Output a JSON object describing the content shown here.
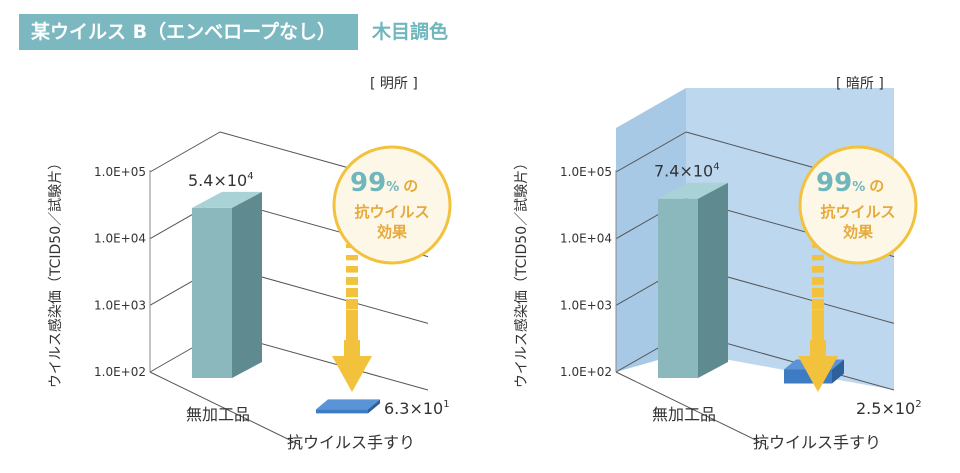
{
  "header": {
    "title": "某ウイルス B（エンベロープなし）",
    "subtitle": "木目調色"
  },
  "chart_data": [
    {
      "type": "bar",
      "log_scale": true,
      "condition": "[ 明所 ]",
      "ylabel": "ウイルス感染価（TCID50／試験片）",
      "yticks": [
        "1.0E+02",
        "1.0E+03",
        "1.0E+04",
        "1.0E+05"
      ],
      "ylim": [
        100,
        100000
      ],
      "categories": [
        "無加工品",
        "抗ウイルス手すり"
      ],
      "values": [
        54000,
        63
      ],
      "value_labels": [
        {
          "base": "5.4×10",
          "exp": "4"
        },
        {
          "base": "6.3×10",
          "exp": "1"
        }
      ],
      "badge": {
        "percent": "99",
        "percent_unit": "%",
        "particle": "の",
        "line2": "抗ウイルス",
        "line3": "効果"
      },
      "colors": {
        "bar_untreated": "#8ab8bd",
        "bar_treated": "#3d7bc2",
        "arrow": "#f2c23c",
        "background": "#ffffff"
      }
    },
    {
      "type": "bar",
      "log_scale": true,
      "condition": "[ 暗所 ]",
      "ylabel": "ウイルス感染価（TCID50／試験片）",
      "yticks": [
        "1.0E+02",
        "1.0E+03",
        "1.0E+04",
        "1.0E+05"
      ],
      "ylim": [
        100,
        100000
      ],
      "categories": [
        "無加工品",
        "抗ウイルス手すり"
      ],
      "values": [
        74000,
        250
      ],
      "value_labels": [
        {
          "base": "7.4×10",
          "exp": "4"
        },
        {
          "base": "2.5×10",
          "exp": "2"
        }
      ],
      "badge": {
        "percent": "99",
        "percent_unit": "%",
        "particle": "の",
        "line2": "抗ウイルス",
        "line3": "効果"
      },
      "colors": {
        "bar_untreated": "#8ab8bd",
        "bar_treated": "#3d7bc2",
        "arrow": "#f2c23c",
        "background": "#bcd7ee"
      }
    }
  ]
}
